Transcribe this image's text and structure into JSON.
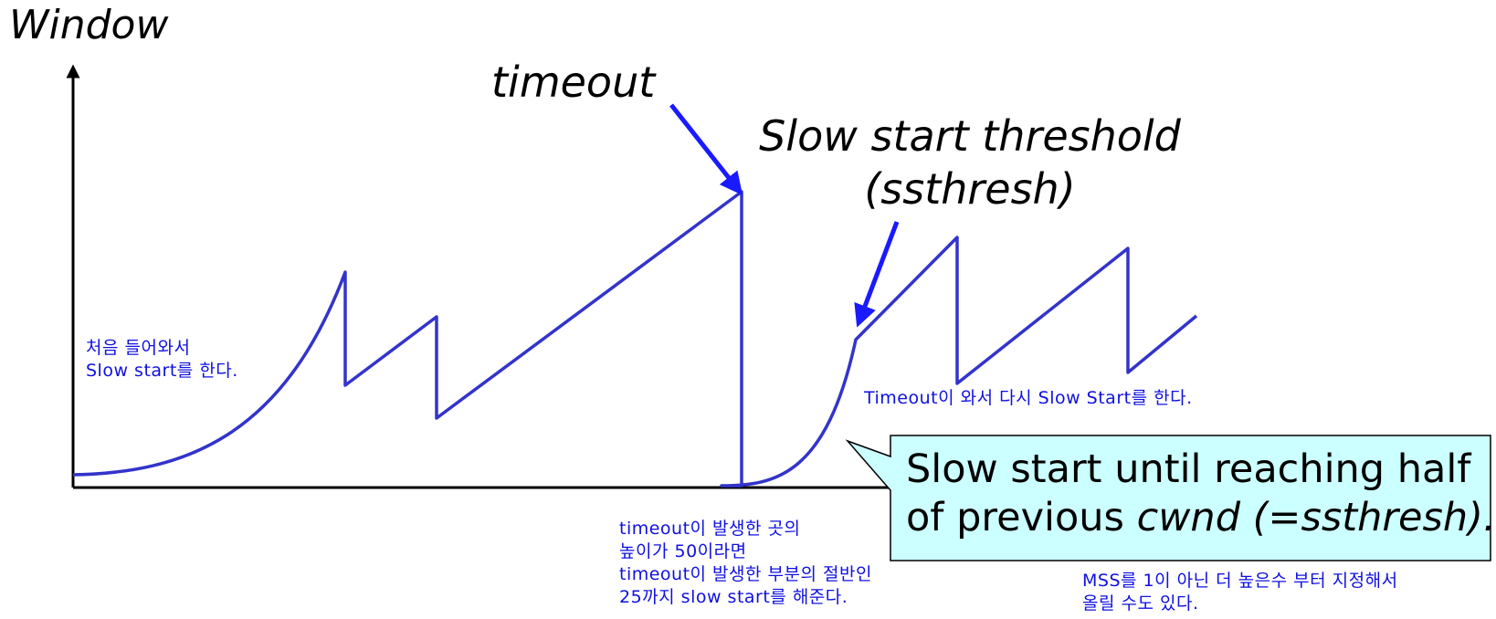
{
  "labels": {
    "y_axis": "Window",
    "timeout": "timeout",
    "ssthresh_line1": "Slow start threshold",
    "ssthresh_line2": "(ssthresh)"
  },
  "notes": {
    "start_line1": "처음 들어와서",
    "start_line2": "Slow start를 한다.",
    "timeout_again": "Timeout이 와서 다시 Slow Start를 한다.",
    "half_line1": "timeout이 발생한 곳의",
    "half_line2": "높이가 50이라면",
    "half_line3": "timeout이 발생한 부분의 절반인",
    "half_line4": "25까지 slow start를 해준다.",
    "mss_line1": "MSS를 1이 아닌 더 높은수 부터 지정해서",
    "mss_line2": "올릴 수도 있다."
  },
  "callout": {
    "line1": "Slow start until reaching half",
    "line2_prefix": "of previous ",
    "line2_cwnd": "cwnd",
    "line2_suffix": " (=ssthresh)."
  },
  "colors": {
    "curve": "#3333cc",
    "arrow": "#1a1aff",
    "note_text": "#1010e0",
    "callout_fill": "#ccffff"
  }
}
